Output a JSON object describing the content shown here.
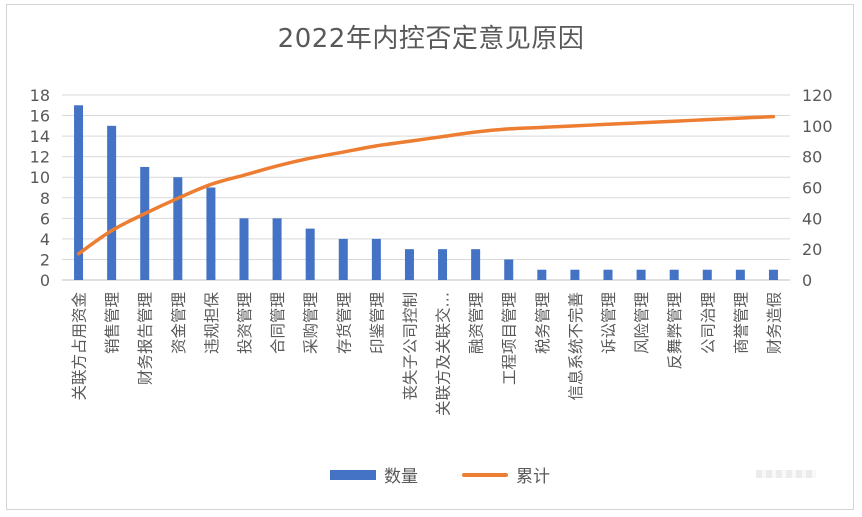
{
  "chart_data": {
    "type": "bar",
    "title": "2022年内控否定意见原因",
    "categories": [
      "关联方占用资金",
      "销售管理",
      "财务报告管理",
      "资金管理",
      "违规担保",
      "投资管理",
      "合同管理",
      "采购管理",
      "存货管理",
      "印鉴管理",
      "丧失子公司控制",
      "关联方及关联交…",
      "融资管理",
      "工程项目管理",
      "税务管理",
      "信息系统不完善",
      "诉讼管理",
      "风险管理",
      "反舞弊管理",
      "公司治理",
      "商誉管理",
      "财务造假"
    ],
    "series": [
      {
        "name": "数量",
        "type": "bar",
        "axis": "left",
        "color": "#4472c4",
        "values": [
          17,
          15,
          11,
          10,
          9,
          6,
          6,
          5,
          4,
          4,
          3,
          3,
          3,
          2,
          1,
          1,
          1,
          1,
          1,
          1,
          1,
          1
        ]
      },
      {
        "name": "累计",
        "type": "line",
        "axis": "right",
        "color": "#ed7d31",
        "values": [
          17,
          32,
          43,
          53,
          62,
          68,
          74,
          79,
          83,
          87,
          90,
          93,
          96,
          98,
          99,
          100,
          101,
          102,
          103,
          104,
          105,
          106
        ]
      }
    ],
    "y_left": {
      "ylim": [
        0,
        18
      ],
      "ticks": [
        "0",
        "2",
        "4",
        "6",
        "8",
        "10",
        "12",
        "14",
        "16",
        "18"
      ]
    },
    "y_right": {
      "ylim": [
        0,
        120
      ],
      "ticks": [
        "0",
        "20",
        "40",
        "60",
        "80",
        "100",
        "120"
      ]
    },
    "grid": true,
    "legend_placement": "bottom"
  }
}
